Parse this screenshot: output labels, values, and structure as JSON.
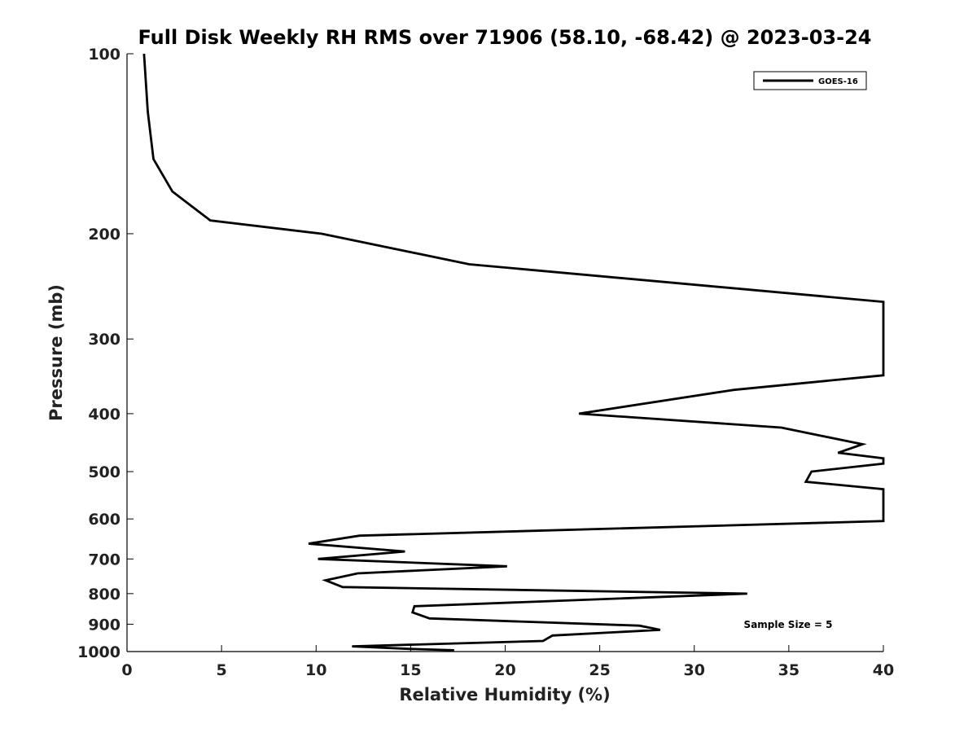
{
  "chart_data": {
    "type": "line",
    "title": "Full Disk Weekly RH RMS over 71906 (58.10, -68.42) @ 2023-03-24",
    "xlabel": "Relative Humidity (%)",
    "ylabel": "Pressure (mb)",
    "xlim": [
      0,
      40
    ],
    "ylim": [
      100,
      1000
    ],
    "yscale": "log",
    "x_ticks": [
      0,
      5,
      10,
      15,
      20,
      25,
      30,
      35,
      40
    ],
    "x_tick_labels": [
      "0",
      "5",
      "10",
      "15",
      "20",
      "25",
      "30",
      "35",
      "40"
    ],
    "y_ticks": [
      100,
      200,
      300,
      400,
      500,
      600,
      700,
      800,
      900,
      1000
    ],
    "y_tick_labels": [
      "100",
      "200",
      "300",
      "400",
      "500",
      "600",
      "700",
      "800",
      "900",
      "1000"
    ],
    "grid": false,
    "legend_position": "top-right",
    "annotation": "Sample Size = 5",
    "series": [
      {
        "name": "GOES-16",
        "color": "#000000",
        "points": [
          [
            0.9,
            100
          ],
          [
            1.1,
            125
          ],
          [
            1.4,
            150
          ],
          [
            2.4,
            170
          ],
          [
            4.4,
            190
          ],
          [
            10.3,
            200
          ],
          [
            18.1,
            225
          ],
          [
            40.0,
            260
          ],
          [
            40.0,
            345
          ],
          [
            32.1,
            365
          ],
          [
            23.9,
            400
          ],
          [
            34.6,
            422
          ],
          [
            38.9,
            450
          ],
          [
            37.6,
            465
          ],
          [
            40.0,
            475
          ],
          [
            40.0,
            485
          ],
          [
            36.2,
            500
          ],
          [
            35.9,
            520
          ],
          [
            40.0,
            535
          ],
          [
            40.0,
            605
          ],
          [
            12.3,
            640
          ],
          [
            9.6,
            660
          ],
          [
            14.7,
            680
          ],
          [
            10.1,
            700
          ],
          [
            20.1,
            720
          ],
          [
            12.2,
            740
          ],
          [
            10.5,
            760
          ],
          [
            11.4,
            780
          ],
          [
            32.8,
            800
          ],
          [
            15.2,
            840
          ],
          [
            15.1,
            860
          ],
          [
            16.0,
            880
          ],
          [
            27.1,
            905
          ],
          [
            28.2,
            920
          ],
          [
            22.5,
            940
          ],
          [
            22.0,
            960
          ],
          [
            11.9,
            980
          ],
          [
            15.0,
            990
          ],
          [
            17.3,
            995
          ]
        ]
      }
    ]
  }
}
